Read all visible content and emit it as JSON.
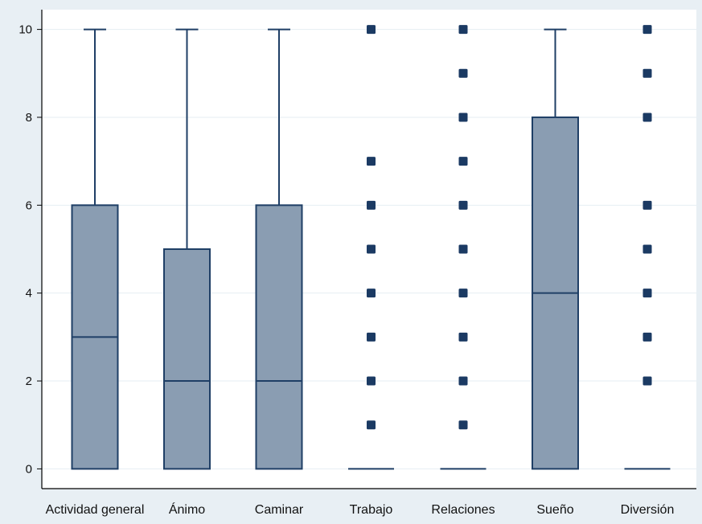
{
  "chart_data": {
    "type": "box",
    "categories": [
      "Actividad general",
      "Ánimo",
      "Caminar",
      "Trabajo",
      "Relaciones",
      "Sueño",
      "Diversión"
    ],
    "y_ticks": [
      0,
      2,
      4,
      6,
      8,
      10
    ],
    "ylim": [
      -0.45,
      10.45
    ],
    "boxes": [
      {
        "name": "Actividad general",
        "q1": 0,
        "median": 3,
        "q3": 6,
        "whisker_low": 0,
        "whisker_high": 10,
        "outliers": []
      },
      {
        "name": "Ánimo",
        "q1": 0,
        "median": 2,
        "q3": 5,
        "whisker_low": 0,
        "whisker_high": 10,
        "outliers": []
      },
      {
        "name": "Caminar",
        "q1": 0,
        "median": 2,
        "q3": 6,
        "whisker_low": 0,
        "whisker_high": 10,
        "outliers": []
      },
      {
        "name": "Trabajo",
        "q1": 0,
        "median": 0,
        "q3": 0,
        "whisker_low": 0,
        "whisker_high": 0,
        "outliers": [
          1,
          2,
          3,
          4,
          5,
          6,
          7,
          10
        ]
      },
      {
        "name": "Relaciones",
        "q1": 0,
        "median": 0,
        "q3": 0,
        "whisker_low": 0,
        "whisker_high": 0,
        "outliers": [
          1,
          2,
          3,
          4,
          5,
          6,
          7,
          8,
          9,
          10
        ]
      },
      {
        "name": "Sueño",
        "q1": 0,
        "median": 4,
        "q3": 8,
        "whisker_low": 0,
        "whisker_high": 10,
        "outliers": []
      },
      {
        "name": "Diversión",
        "q1": 0,
        "median": 0,
        "q3": 0,
        "whisker_low": 0,
        "whisker_high": 0,
        "outliers": [
          2,
          3,
          4,
          5,
          6,
          8,
          9,
          10
        ]
      }
    ],
    "grid": true,
    "legend": "none",
    "colors": {
      "outer_background": "#e8eff4",
      "plot_background": "#ffffff",
      "box_fill": "#8a9db2",
      "box_stroke": "#1f3f66",
      "outlier": "#1b3a63",
      "gridline": "#e6eef3",
      "axis": "#000000"
    }
  }
}
